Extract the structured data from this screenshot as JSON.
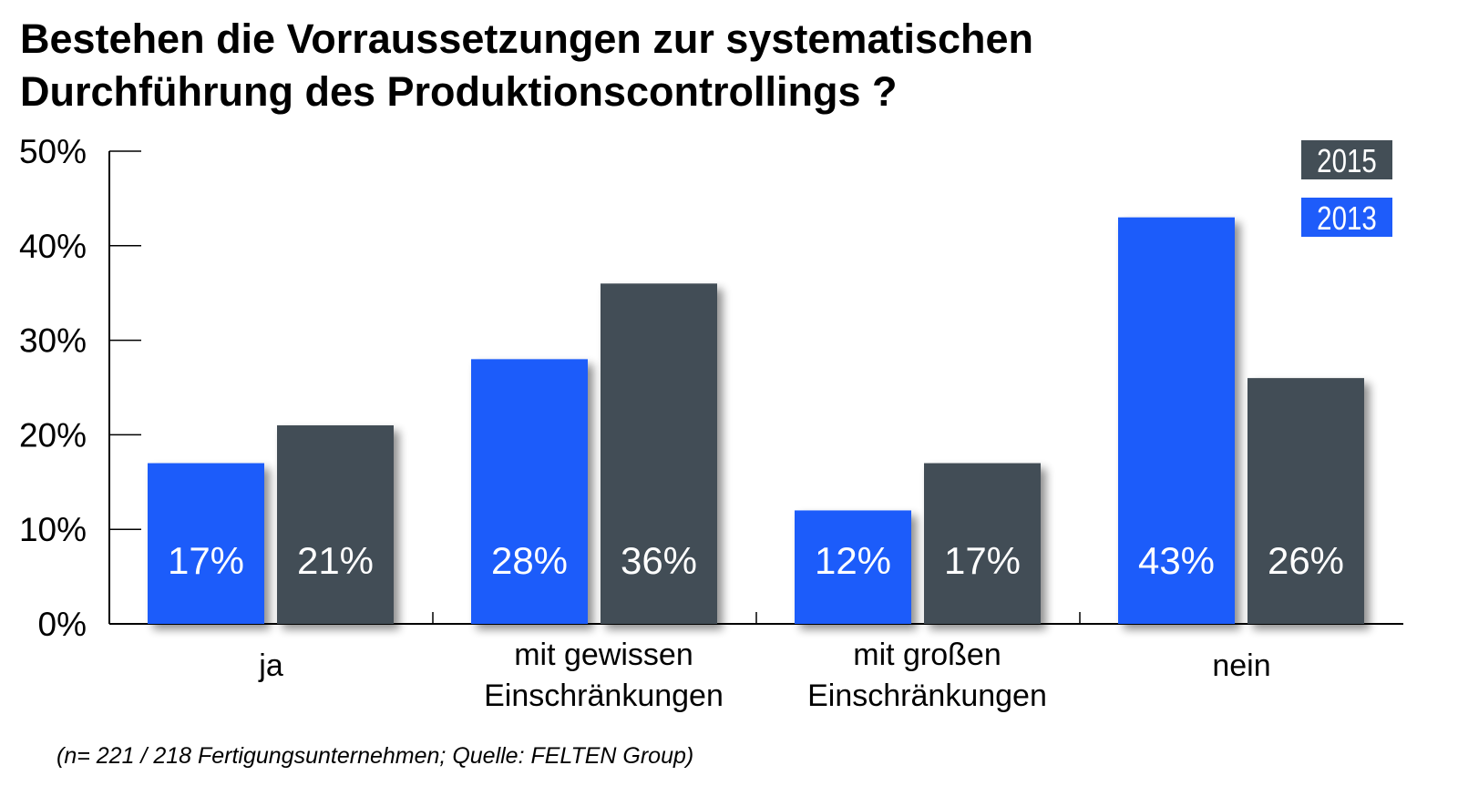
{
  "chart_data": {
    "type": "bar",
    "title_lines": [
      "Bestehen die Vorraussetzungen zur systematischen",
      "Durchführung des Produktionscontrollings ?"
    ],
    "categories": [
      [
        "ja"
      ],
      [
        "mit gewissen",
        "Einschränkungen"
      ],
      [
        "mit großen",
        "Einschränkungen"
      ],
      [
        "nein"
      ]
    ],
    "series": [
      {
        "name": "2013",
        "color": "#1e5cfa",
        "values": [
          17,
          28,
          12,
          43
        ],
        "labels": [
          "17%",
          "28%",
          "12%",
          "43%"
        ]
      },
      {
        "name": "2015",
        "color": "#434e56",
        "values": [
          21,
          36,
          17,
          26
        ],
        "labels": [
          "21%",
          "36%",
          "17%",
          "26%"
        ]
      }
    ],
    "legend": [
      "2015",
      "2013"
    ],
    "legend_placement": "top-right",
    "yticks": [
      "0%",
      "10%",
      "20%",
      "30%",
      "40%",
      "50%"
    ],
    "ylim": [
      0,
      50
    ],
    "xlabel": "",
    "ylabel": "",
    "footnote": "(n= 221 / 218 Fertigungsunternehmen; Quelle: FELTEN Group)"
  }
}
